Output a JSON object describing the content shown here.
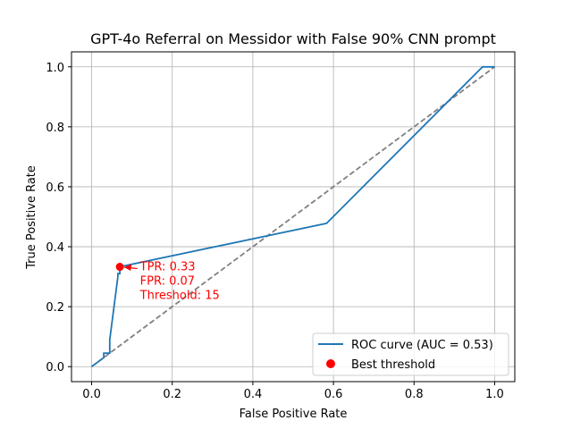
{
  "chart_data": {
    "type": "line",
    "title": "GPT-4o Referral on Messidor with False 90% CNN prompt",
    "xlabel": "False Positive Rate",
    "ylabel": "True Positive Rate",
    "xlim": [
      -0.05,
      1.05
    ],
    "ylim": [
      -0.05,
      1.05
    ],
    "xticks": [
      "0.0",
      "0.2",
      "0.4",
      "0.6",
      "0.8",
      "1.0"
    ],
    "yticks": [
      "0.0",
      "0.2",
      "0.4",
      "0.6",
      "0.8",
      "1.0"
    ],
    "grid": true,
    "legend_position": "lower-right",
    "series": [
      {
        "name": "ROC curve (AUC = 0.53)",
        "color": "#1f77b4",
        "x": [
          0.0,
          0.03,
          0.03,
          0.045,
          0.045,
          0.065,
          0.065,
          0.07,
          0.07,
          0.583,
          0.97,
          0.995,
          1.0
        ],
        "y": [
          0.0,
          0.03,
          0.045,
          0.045,
          0.09,
          0.3,
          0.31,
          0.31,
          0.333,
          0.478,
          1.0,
          1.0,
          1.0
        ]
      },
      {
        "name": "",
        "color": "#808080",
        "dashed": true,
        "x": [
          0,
          1
        ],
        "y": [
          0,
          1
        ]
      }
    ],
    "best_point": {
      "name": "Best threshold",
      "color": "#ff0000",
      "x": 0.07,
      "y": 0.333
    },
    "annotation": {
      "lines": [
        "TPR: 0.33",
        "FPR: 0.07",
        "Threshold: 15"
      ],
      "color": "#ff0000"
    }
  }
}
